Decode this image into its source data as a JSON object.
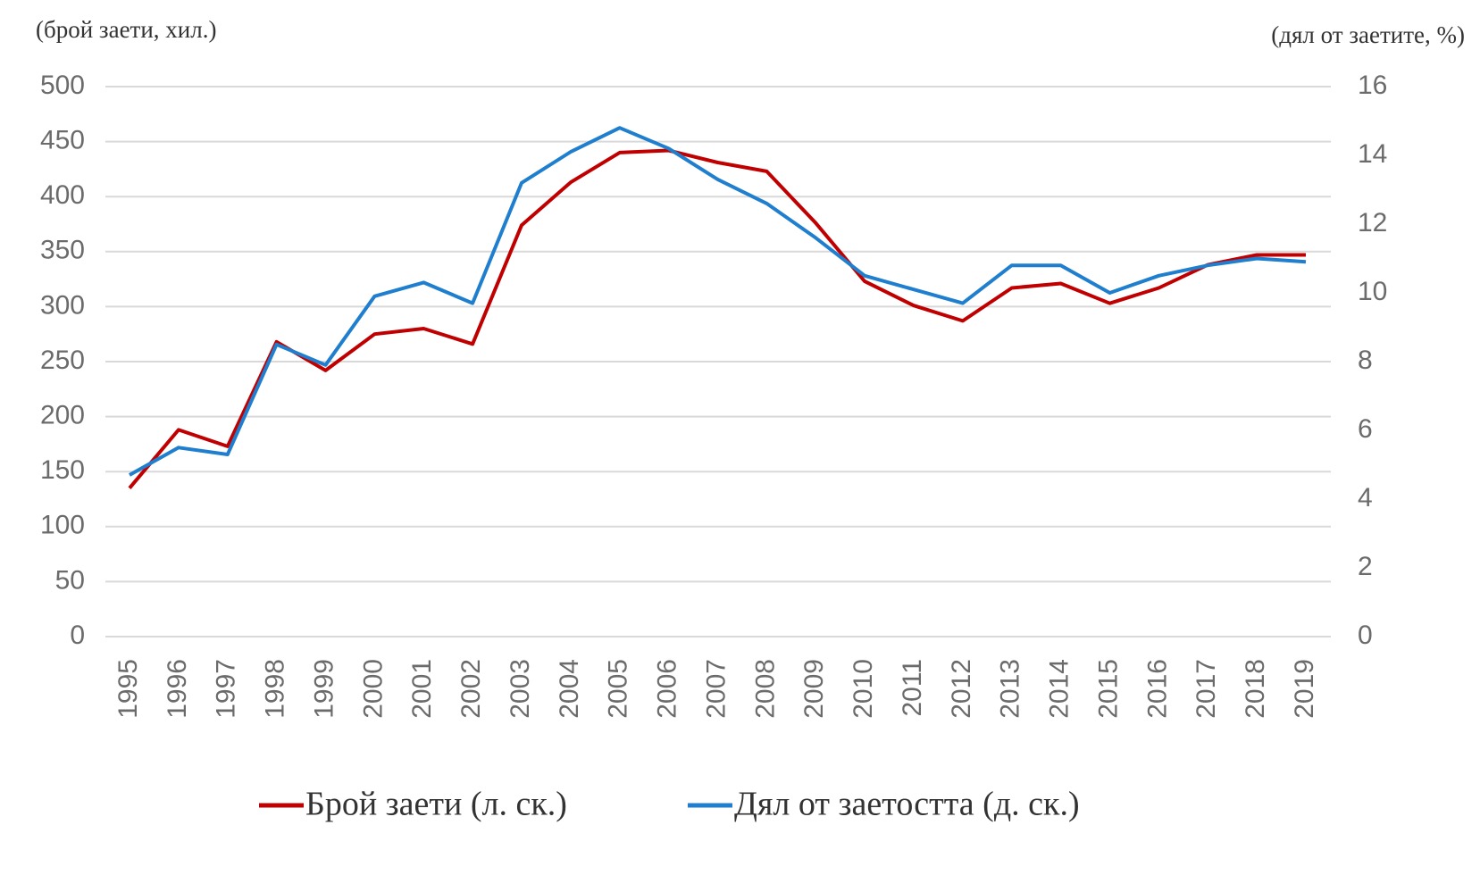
{
  "chart_data": {
    "type": "line",
    "y_label": "(брой заети, хил.)",
    "y2_label": "(дял от заетите, %)",
    "categories": [
      "1995",
      "1996",
      "1997",
      "1998",
      "1999",
      "2000",
      "2001",
      "2002",
      "2003",
      "2004",
      "2005",
      "2006",
      "2007",
      "2008",
      "2009",
      "2010",
      "2011",
      "2012",
      "2013",
      "2014",
      "2015",
      "2016",
      "2017",
      "2018",
      "2019"
    ],
    "series": [
      {
        "name": "Брой заети (л. ск.)",
        "color": "#c00000",
        "axis": "y",
        "values": [
          135,
          188,
          173,
          268,
          242,
          275,
          280,
          266,
          374,
          413,
          440,
          442,
          431,
          423,
          376,
          323,
          301,
          287,
          317,
          321,
          303,
          317,
          338,
          347,
          347
        ]
      },
      {
        "name": "Дял от заетостта (д. ск.)",
        "color": "#1f7fce",
        "axis": "y2",
        "values": [
          4.7,
          5.5,
          5.3,
          8.5,
          7.9,
          9.9,
          10.3,
          9.7,
          13.2,
          14.1,
          14.8,
          14.2,
          13.3,
          12.6,
          11.6,
          10.5,
          10.1,
          9.7,
          10.8,
          10.8,
          10.0,
          10.5,
          10.8,
          11.0,
          10.9
        ]
      }
    ],
    "ylim": [
      0,
      500
    ],
    "yticks": [
      0,
      50,
      100,
      150,
      200,
      250,
      300,
      350,
      400,
      450,
      500
    ],
    "y2lim": [
      0,
      16
    ],
    "y2ticks": [
      0,
      2,
      4,
      6,
      8,
      10,
      12,
      14,
      16
    ],
    "grid": true
  }
}
